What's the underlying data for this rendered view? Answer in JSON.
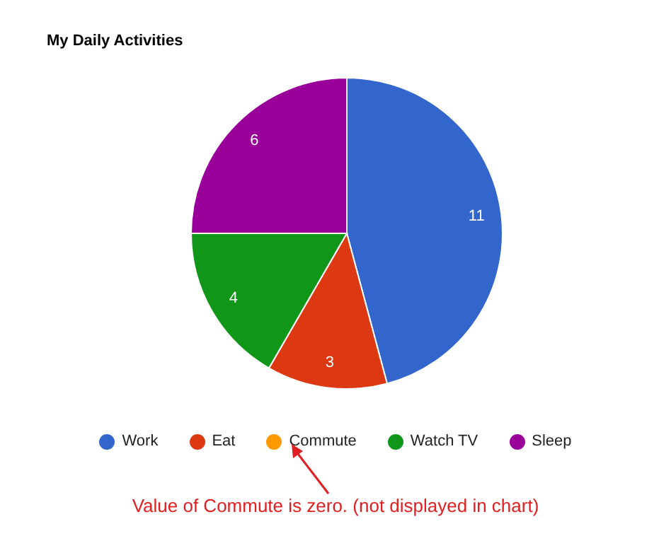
{
  "chart_data": {
    "type": "pie",
    "title": "My Daily Activities",
    "categories": [
      "Work",
      "Eat",
      "Commute",
      "Watch TV",
      "Sleep"
    ],
    "values": [
      11,
      3,
      0,
      4,
      6
    ],
    "colors": [
      "#3366cc",
      "#dc3912",
      "#ff9900",
      "#109618",
      "#990099"
    ],
    "value_labels": [
      "11",
      "3",
      null,
      "4",
      "6"
    ],
    "legend": "bottom",
    "annotations": [
      "Value of Commute is zero. (not displayed in chart)"
    ]
  }
}
